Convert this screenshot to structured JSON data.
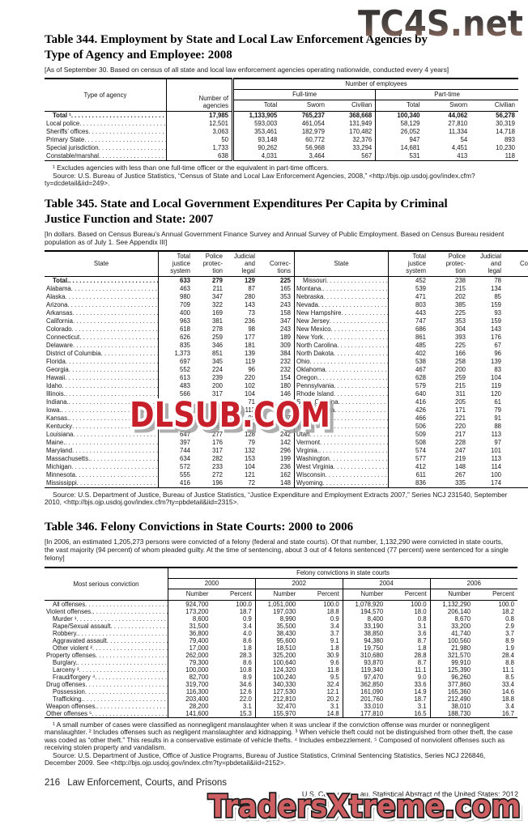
{
  "watermarks": {
    "top": "TC4S.net",
    "middle": "DLSUB.COM",
    "bottom": "TradersXtreme.com",
    "top_color_start": "#2b2b2b",
    "top_color_end": "#a4766a",
    "middle_color": "#c8202a",
    "bottom_color": "#cd5f63"
  },
  "table344": {
    "title": "Table 344. Employment by State and Local Law Enforcement Agencies by Type of Agency and Employee: 2008",
    "note": "[As of September 30. Based on census of all state and local law enforcement agencies operating nationwide, conducted every 4 years]",
    "headers": {
      "stub": "Type of agency",
      "agencies": "Number of\nagencies",
      "group": "Number of employees",
      "fulltime": "Full-time",
      "parttime": "Part-time",
      "cols": [
        "Total",
        "Sworn",
        "Civilian"
      ]
    },
    "rows": [
      {
        "label": "Total ¹",
        "bold": true,
        "indent": true,
        "values": [
          "17,985",
          "1,133,905",
          "765,237",
          "368,668",
          "100,340",
          "44,062",
          "56,278"
        ]
      },
      {
        "label": "Local police",
        "bold": false,
        "indent": false,
        "values": [
          "12,501",
          "593,003",
          "461,054",
          "131,949",
          "58,129",
          "27,810",
          "30,319"
        ]
      },
      {
        "label": "Sheriffs’ offices",
        "bold": false,
        "indent": false,
        "values": [
          "3,063",
          "353,461",
          "182,979",
          "170,482",
          "26,052",
          "11,334",
          "14,718"
        ]
      },
      {
        "label": "Primary State",
        "bold": false,
        "indent": false,
        "values": [
          "50",
          "93,148",
          "60,772",
          "32,376",
          "947",
          "54",
          "893"
        ]
      },
      {
        "label": "Special jurisdiction",
        "bold": false,
        "indent": false,
        "values": [
          "1,733",
          "90,262",
          "56,968",
          "33,294",
          "14,681",
          "4,451",
          "10,230"
        ]
      },
      {
        "label": "Constable/marshal",
        "bold": false,
        "indent": false,
        "values": [
          "638",
          "4,031",
          "3,464",
          "567",
          "531",
          "413",
          "118"
        ]
      }
    ],
    "footnote": "¹ Excludes agencies with less than one full-time officer or the equivalent in part-time officers.",
    "source": "Source: U.S. Bureau of Justice Statistics, “Census of State and Local Law Enforcement Agencies, 2008,” <http://bjs.ojp.usdoj.gov/index.cfm?ty=dcdetail&iid=249>."
  },
  "table345": {
    "title": "Table 345. State and Local Government Expenditures Per Capita by Criminal Justice Function and State: 2007",
    "note": "[In dollars. Based on Census Bureau’s Annual Government Finance Survey and Annual Survey of Public Employment. Based on Census Bureau resident population as of July 1. See Appendix III]",
    "state_header": "State",
    "cols": [
      "Total\njustice\nsystem",
      "Police\nprotec-\ntion",
      "Judicial\nand\nlegal",
      "Correc-\ntions"
    ],
    "rows": [
      {
        "bold": true,
        "left": {
          "label": "Total.",
          "values": [
            "633",
            "279",
            "129",
            "225"
          ]
        },
        "right": {
          "label": "Missouri",
          "values": [
            "452",
            "238",
            "78",
            "136"
          ]
        }
      },
      {
        "bold": false,
        "left": {
          "label": "Alabama",
          "values": [
            "463",
            "211",
            "87",
            "165"
          ]
        },
        "right": {
          "label": "Montana.",
          "values": [
            "539",
            "215",
            "134",
            "189"
          ]
        }
      },
      {
        "bold": false,
        "left": {
          "label": "Alaska",
          "values": [
            "980",
            "347",
            "280",
            "353"
          ]
        },
        "right": {
          "label": "Nebraska",
          "values": [
            "471",
            "202",
            "85",
            "184"
          ]
        }
      },
      {
        "bold": false,
        "left": {
          "label": "Arizona",
          "values": [
            "709",
            "322",
            "143",
            "243"
          ]
        },
        "right": {
          "label": "Nevada",
          "values": [
            "803",
            "385",
            "159",
            "259"
          ]
        }
      },
      {
        "bold": false,
        "left": {
          "label": "Arkansas",
          "values": [
            "400",
            "169",
            "73",
            "158"
          ]
        },
        "right": {
          "label": "New Hampshire",
          "values": [
            "443",
            "225",
            "93",
            "125"
          ]
        }
      },
      {
        "bold": false,
        "left": {
          "label": "California",
          "values": [
            "963",
            "381",
            "236",
            "347"
          ]
        },
        "right": {
          "label": "New Jersey",
          "values": [
            "747",
            "353",
            "159",
            "235"
          ]
        }
      },
      {
        "bold": false,
        "left": {
          "label": "Colorado",
          "values": [
            "618",
            "278",
            "98",
            "243"
          ]
        },
        "right": {
          "label": "New Mexico",
          "values": [
            "686",
            "304",
            "143",
            "239"
          ]
        }
      },
      {
        "bold": false,
        "left": {
          "label": "Connecticut",
          "values": [
            "626",
            "259",
            "177",
            "189"
          ]
        },
        "right": {
          "label": "New York",
          "values": [
            "861",
            "393",
            "176",
            "291"
          ]
        }
      },
      {
        "bold": false,
        "left": {
          "label": "Delaware",
          "values": [
            "835",
            "346",
            "181",
            "309"
          ]
        },
        "right": {
          "label": "North Carolina",
          "values": [
            "485",
            "225",
            "67",
            "193"
          ]
        }
      },
      {
        "bold": false,
        "left": {
          "label": "District of Columbia",
          "values": [
            "1,373",
            "851",
            "139",
            "384"
          ]
        },
        "right": {
          "label": "North Dakota",
          "values": [
            "402",
            "166",
            "96",
            "140"
          ]
        }
      },
      {
        "bold": false,
        "left": {
          "label": "Florida",
          "values": [
            "697",
            "345",
            "119",
            "232"
          ]
        },
        "right": {
          "label": "Ohio",
          "values": [
            "538",
            "258",
            "139",
            "142"
          ]
        }
      },
      {
        "bold": false,
        "left": {
          "label": "Georgia",
          "values": [
            "552",
            "224",
            "96",
            "232"
          ]
        },
        "right": {
          "label": "Oklahoma",
          "values": [
            "467",
            "200",
            "83",
            "185"
          ]
        }
      },
      {
        "bold": false,
        "left": {
          "label": "Hawaii",
          "values": [
            "613",
            "239",
            "220",
            "154"
          ]
        },
        "right": {
          "label": "Oregon.",
          "values": [
            "628",
            "259",
            "104",
            "265"
          ]
        }
      },
      {
        "bold": false,
        "left": {
          "label": "Idaho",
          "values": [
            "483",
            "200",
            "102",
            "180"
          ]
        },
        "right": {
          "label": "Pennsylvania",
          "values": [
            "579",
            "215",
            "119",
            "245"
          ]
        }
      },
      {
        "bold": false,
        "left": {
          "label": "Illinois.",
          "values": [
            "566",
            "317",
            "104",
            "146"
          ]
        },
        "right": {
          "label": "Rhode Island",
          "values": [
            "640",
            "311",
            "120",
            "209"
          ]
        }
      },
      {
        "bold": false,
        "left": {
          "label": "Indiana.",
          "values": [
            "400",
            "175",
            "71",
            "154"
          ]
        },
        "right": {
          "label": "South Carolina",
          "values": [
            "416",
            "205",
            "61",
            "150"
          ]
        }
      },
      {
        "bold": false,
        "left": {
          "label": "Iowa.",
          "values": [
            "445",
            "175",
            "113",
            "157"
          ]
        },
        "right": {
          "label": "South Dakota",
          "values": [
            "426",
            "171",
            "79",
            "176"
          ]
        }
      },
      {
        "bold": false,
        "left": {
          "label": "Kansas.",
          "values": [
            "482",
            "219",
            "96",
            "167"
          ]
        },
        "right": {
          "label": "Tennessee",
          "values": [
            "466",
            "221",
            "91",
            "154"
          ]
        }
      },
      {
        "bold": false,
        "left": {
          "label": "Kentucky",
          "values": [
            "403",
            "162",
            "87",
            "154"
          ]
        },
        "right": {
          "label": "Texas",
          "values": [
            "506",
            "220",
            "88",
            "198"
          ]
        }
      },
      {
        "bold": false,
        "left": {
          "label": "Louisiana",
          "values": [
            "647",
            "277",
            "128",
            "242"
          ]
        },
        "right": {
          "label": "Utah",
          "values": [
            "509",
            "217",
            "113",
            "179"
          ]
        }
      },
      {
        "bold": false,
        "left": {
          "label": "Maine.",
          "values": [
            "397",
            "176",
            "79",
            "142"
          ]
        },
        "right": {
          "label": "Vermont",
          "values": [
            "508",
            "228",
            "97",
            "183"
          ]
        }
      },
      {
        "bold": false,
        "left": {
          "label": "Maryland",
          "values": [
            "744",
            "317",
            "132",
            "296"
          ]
        },
        "right": {
          "label": "Virginia.",
          "values": [
            "574",
            "247",
            "101",
            "226"
          ]
        }
      },
      {
        "bold": false,
        "left": {
          "label": "Massachusetts.",
          "values": [
            "634",
            "282",
            "153",
            "199"
          ]
        },
        "right": {
          "label": "Washington",
          "values": [
            "577",
            "219",
            "113",
            "245"
          ]
        }
      },
      {
        "bold": false,
        "left": {
          "label": "Michigan",
          "values": [
            "572",
            "233",
            "104",
            "236"
          ]
        },
        "right": {
          "label": "West Virginia",
          "values": [
            "412",
            "148",
            "114",
            "151"
          ]
        }
      },
      {
        "bold": false,
        "left": {
          "label": "Minnesota",
          "values": [
            "555",
            "272",
            "121",
            "162"
          ]
        },
        "right": {
          "label": "Wisconsin",
          "values": [
            "611",
            "267",
            "100",
            "244"
          ]
        }
      },
      {
        "bold": false,
        "left": {
          "label": "Mississippi",
          "values": [
            "416",
            "196",
            "72",
            "148"
          ]
        },
        "right": {
          "label": "Wyoming",
          "values": [
            "836",
            "335",
            "174",
            "327"
          ]
        }
      }
    ],
    "source": "Source: U.S. Department of Justice, Bureau of Justice Statistics, “Justice Expenditure and Employment Extracts 2007,” Series NCJ 231540, September 2010, <http://bjs.ojp.usdoj.gov/index.cfm?ty=pbdetail&iid=2315>."
  },
  "table346": {
    "title": "Table 346. Felony Convictions in State Courts: 2000 to 2006",
    "note": "[In 2006, an estimated 1,205,273 persons were convicted of a felony (federal and state courts). Of that number, 1,132,290 were convicted in state courts, the vast majority (94 percent) of whom pleaded guilty. At the time of sentencing, about 3 out of 4 felons sentenced (77 percent) were sentenced for a single felony]",
    "stub": "Most serious conviction",
    "group": "Felony convictions in state courts",
    "years": [
      "2000",
      "2002",
      "2004",
      "2006"
    ],
    "sub": [
      "Number",
      "Percent"
    ],
    "rows": [
      {
        "label": "All offenses",
        "indent": true,
        "values": [
          "924,700",
          "100.0",
          "1,051,000",
          "100.0",
          "1,078,920",
          "100.0",
          "1,132,290",
          "100.0"
        ]
      },
      {
        "label": "Violent offenses.",
        "indent": false,
        "values": [
          "173,200",
          "18.7",
          "197,030",
          "18.8",
          "194,570",
          "18.0",
          "206,140",
          "18.2"
        ]
      },
      {
        "label": "Murder ¹",
        "indent": true,
        "values": [
          "8,600",
          "0.9",
          "8,990",
          "0.9",
          "8,400",
          "0.8",
          "8,670",
          "0.8"
        ]
      },
      {
        "label": "Rape/Sexual assault",
        "indent": true,
        "values": [
          "31,500",
          "3.4",
          "35,500",
          "3.4",
          "33,190",
          "3.1",
          "33,200",
          "2.9"
        ]
      },
      {
        "label": "Robbery.",
        "indent": true,
        "values": [
          "36,800",
          "4.0",
          "38,430",
          "3.7",
          "38,850",
          "3.6",
          "41,740",
          "3.7"
        ]
      },
      {
        "label": "Aggravated assault",
        "indent": true,
        "values": [
          "79,400",
          "8.6",
          "95,600",
          "9.1",
          "94,380",
          "8.7",
          "100,560",
          "8.9"
        ]
      },
      {
        "label": "Other violent ²",
        "indent": true,
        "values": [
          "17,000",
          "1.8",
          "18,510",
          "1.8",
          "19,750",
          "1.8",
          "21,980",
          "1.9"
        ]
      },
      {
        "label": "Property offenses",
        "indent": false,
        "values": [
          "262,000",
          "28.3",
          "325,200",
          "30.9",
          "310,680",
          "28.8",
          "321,570",
          "28.4"
        ]
      },
      {
        "label": "Burglary.",
        "indent": true,
        "values": [
          "79,300",
          "8.6",
          "100,640",
          "9.6",
          "93,870",
          "8.7",
          "99,910",
          "8.8"
        ]
      },
      {
        "label": "Larceny ³",
        "indent": true,
        "values": [
          "100,000",
          "10.8",
          "124,320",
          "11.8",
          "119,340",
          "11.1",
          "125,390",
          "11.1"
        ]
      },
      {
        "label": "Fraud/forgery ⁴",
        "indent": true,
        "values": [
          "82,700",
          "8.9",
          "100,240",
          "9.5",
          "97,470",
          "9.0",
          "96,260",
          "8.5"
        ]
      },
      {
        "label": "Drug offenses",
        "indent": false,
        "values": [
          "319,700",
          "34.6",
          "340,330",
          "32.4",
          "362,850",
          "33.6",
          "377,860",
          "33.4"
        ]
      },
      {
        "label": "Possession",
        "indent": true,
        "values": [
          "116,300",
          "12.6",
          "127,530",
          "12.1",
          "161,090",
          "14.9",
          "165,360",
          "14.6"
        ]
      },
      {
        "label": "Trafficking.",
        "indent": true,
        "values": [
          "203,400",
          "22.0",
          "212,810",
          "20.2",
          "201,760",
          "18.7",
          "212,490",
          "18.8"
        ]
      },
      {
        "label": "Weapon offenses.",
        "indent": false,
        "values": [
          "28,200",
          "3.1",
          "32,470",
          "3.1",
          "33,010",
          "3.1",
          "38,010",
          "3.4"
        ]
      },
      {
        "label": "Other offenses ⁵",
        "indent": false,
        "values": [
          "141,600",
          "15.3",
          "155,970",
          "14.8",
          "177,810",
          "16.5",
          "188,730",
          "16.7"
        ]
      }
    ],
    "footnotes": "¹ A small number of cases were classified as nonnegligent manslaughter when it was unclear if the conviction offense was murder or nonnegligent manslaughter. ² Includes offenses such as negligent manslaughter and kidnapping. ³ When vehicle theft could not be distinguished from other theft, the case was coded as “other theft.” This results in a conservative estimate of vehicle thefts. ⁴ Includes embezzlement. ⁵ Composed of nonviolent offenses such as receiving stolen property and vandalism.",
    "source": "Source: U.S. Department of Justice, Office of Justice Programs, Bureau of Justice Statistics, Criminal Sentencing Statistics, Series NCJ 226846, December 2009. See <http://bjs.ojp.usdoj.gov/index.cfm?ty=pbdetail&iid=2152>."
  },
  "footer": {
    "page_number": "216",
    "section_title": "Law Enforcement, Courts, and Prisons",
    "credit": "U.S. Census Bureau, Statistical Abstract of the United States: 2012"
  }
}
